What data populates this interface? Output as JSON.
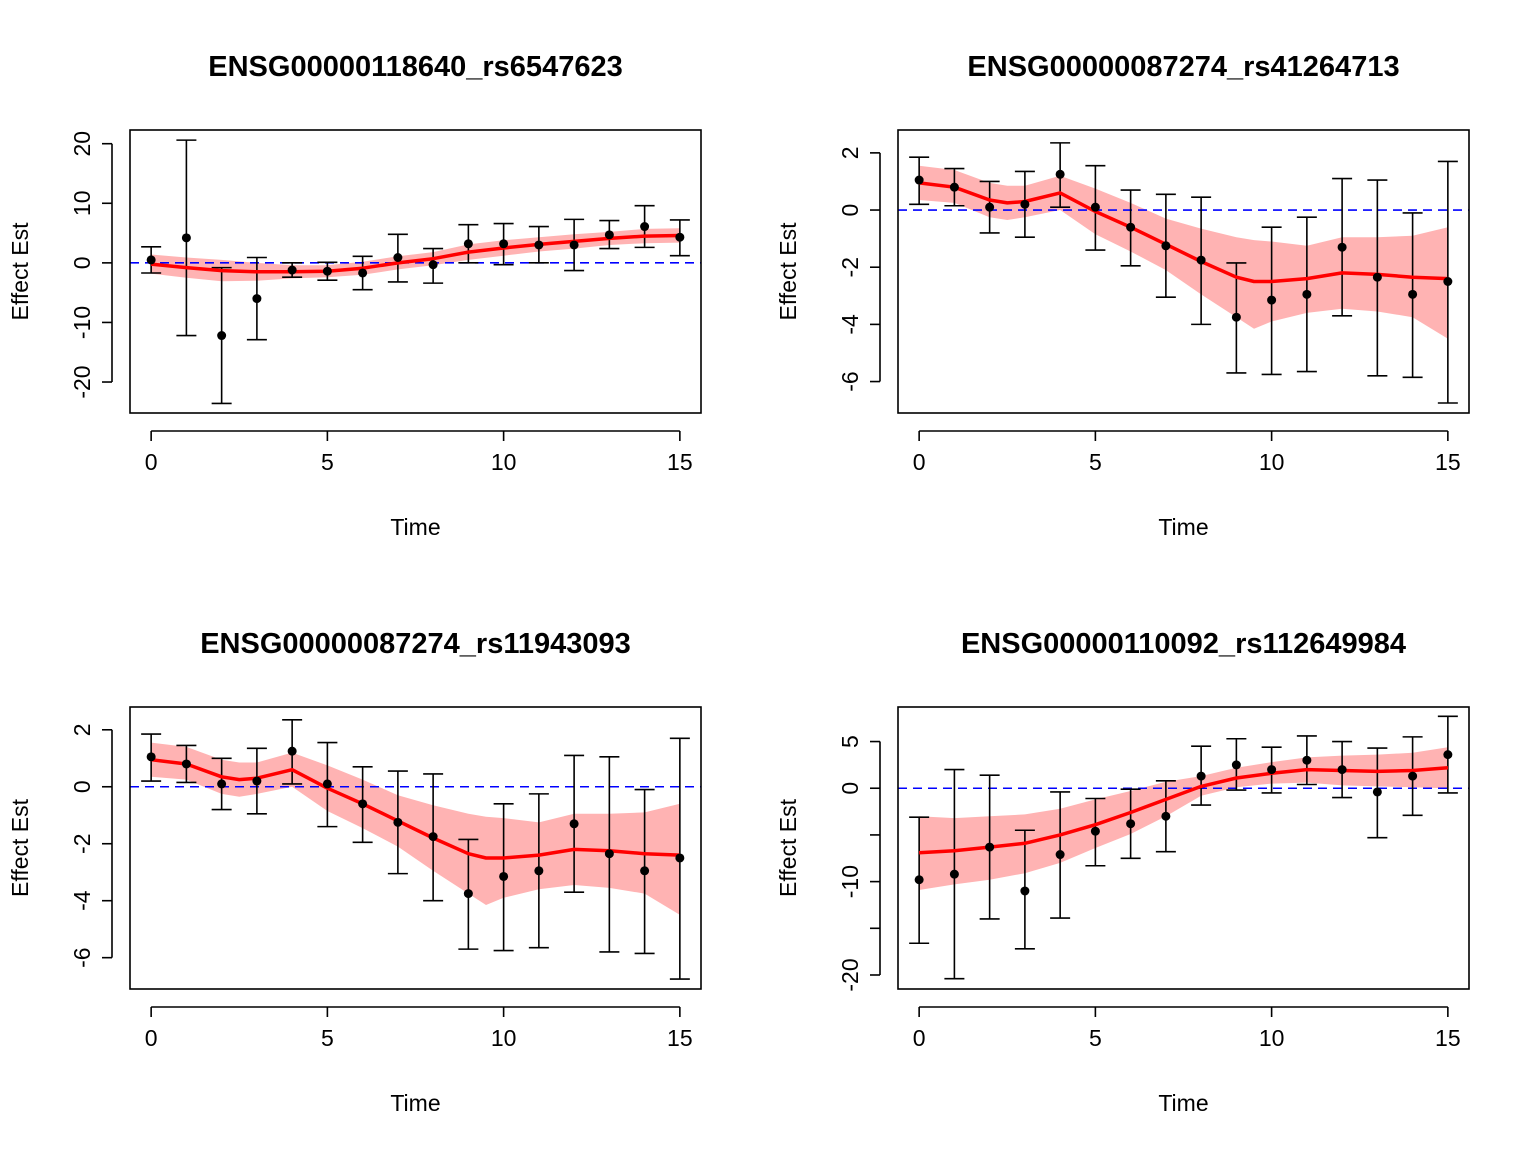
{
  "colors": {
    "band": "#ffb3b3",
    "smooth": "#ff0000",
    "refline": "#0000ff",
    "point": "#000000"
  },
  "chart_data": [
    {
      "type": "scatter",
      "title": "ENSG00000118640_rs6547623",
      "xlabel": "Time",
      "ylabel": "Effect Est",
      "xlim": [
        -0.6,
        15.6
      ],
      "ylim": [
        -25.2,
        22.3
      ],
      "xticks": [
        0,
        5,
        10,
        15
      ],
      "yticks": [
        -20,
        -10,
        0,
        10,
        20
      ],
      "reference_line": 0,
      "points": [
        {
          "x": 0,
          "y": 0.5,
          "lo": -1.7,
          "hi": 2.7
        },
        {
          "x": 1,
          "y": 4.2,
          "lo": -12.2,
          "hi": 20.6
        },
        {
          "x": 2,
          "y": -12.2,
          "lo": -23.6,
          "hi": -0.8
        },
        {
          "x": 3,
          "y": -6.0,
          "lo": -12.9,
          "hi": 0.9
        },
        {
          "x": 4,
          "y": -1.2,
          "lo": -2.4,
          "hi": 0.0
        },
        {
          "x": 5,
          "y": -1.4,
          "lo": -2.9,
          "hi": 0.1
        },
        {
          "x": 6,
          "y": -1.7,
          "lo": -4.5,
          "hi": 1.1
        },
        {
          "x": 7,
          "y": 0.9,
          "lo": -3.2,
          "hi": 4.8
        },
        {
          "x": 8,
          "y": -0.3,
          "lo": -3.4,
          "hi": 2.4
        },
        {
          "x": 9,
          "y": 3.2,
          "lo": 0.0,
          "hi": 6.4
        },
        {
          "x": 10,
          "y": 3.2,
          "lo": -0.3,
          "hi": 6.6
        },
        {
          "x": 11,
          "y": 3.0,
          "lo": 0.0,
          "hi": 6.1
        },
        {
          "x": 12,
          "y": 3.0,
          "lo": -1.3,
          "hi": 7.3
        },
        {
          "x": 13,
          "y": 4.7,
          "lo": 2.4,
          "hi": 7.1
        },
        {
          "x": 14,
          "y": 6.1,
          "lo": 2.6,
          "hi": 9.6
        },
        {
          "x": 15,
          "y": 4.3,
          "lo": 1.2,
          "hi": 7.2
        }
      ],
      "smooth": {
        "x": [
          0,
          1,
          2,
          3,
          4,
          5,
          6,
          7,
          8,
          9,
          10,
          11,
          12,
          13,
          14,
          15
        ],
        "y": [
          -0.2,
          -0.8,
          -1.3,
          -1.5,
          -1.5,
          -1.4,
          -0.9,
          0.0,
          0.7,
          1.8,
          2.5,
          3.1,
          3.6,
          4.1,
          4.5,
          4.6
        ],
        "lo": [
          -1.8,
          -2.5,
          -3.1,
          -3.0,
          -2.6,
          -2.4,
          -2.0,
          -1.1,
          -0.4,
          0.5,
          1.2,
          1.9,
          2.4,
          3.0,
          3.3,
          3.4
        ],
        "hi": [
          1.4,
          0.9,
          0.5,
          0.0,
          -0.4,
          -0.4,
          0.2,
          1.1,
          1.8,
          3.1,
          3.8,
          4.3,
          4.8,
          5.2,
          5.7,
          5.8
        ]
      }
    },
    {
      "type": "scatter",
      "title": "ENSG00000087274_rs41264713",
      "xlabel": "Time",
      "ylabel": "Effect Est",
      "xlim": [
        -0.6,
        15.6
      ],
      "ylim": [
        -7.1,
        2.8
      ],
      "xticks": [
        0,
        5,
        10,
        15
      ],
      "yticks": [
        -6,
        -4,
        -2,
        0,
        2
      ],
      "reference_line": 0,
      "points": [
        {
          "x": 0,
          "y": 1.05,
          "lo": 0.2,
          "hi": 1.85
        },
        {
          "x": 1,
          "y": 0.8,
          "lo": 0.15,
          "hi": 1.45
        },
        {
          "x": 2,
          "y": 0.1,
          "lo": -0.8,
          "hi": 1.0
        },
        {
          "x": 3,
          "y": 0.2,
          "lo": -0.95,
          "hi": 1.35
        },
        {
          "x": 4,
          "y": 1.25,
          "lo": 0.1,
          "hi": 2.35
        },
        {
          "x": 5,
          "y": 0.1,
          "lo": -1.4,
          "hi": 1.55
        },
        {
          "x": 6,
          "y": -0.6,
          "lo": -1.95,
          "hi": 0.7
        },
        {
          "x": 7,
          "y": -1.25,
          "lo": -3.05,
          "hi": 0.55
        },
        {
          "x": 8,
          "y": -1.75,
          "lo": -4.0,
          "hi": 0.45
        },
        {
          "x": 9,
          "y": -3.75,
          "lo": -5.7,
          "hi": -1.85
        },
        {
          "x": 10,
          "y": -3.15,
          "lo": -5.75,
          "hi": -0.6
        },
        {
          "x": 11,
          "y": -2.95,
          "lo": -5.65,
          "hi": -0.25
        },
        {
          "x": 12,
          "y": -1.3,
          "lo": -3.7,
          "hi": 1.1
        },
        {
          "x": 13,
          "y": -2.35,
          "lo": -5.8,
          "hi": 1.05
        },
        {
          "x": 14,
          "y": -2.95,
          "lo": -5.85,
          "hi": -0.1
        },
        {
          "x": 15,
          "y": -2.5,
          "lo": -6.75,
          "hi": 1.7
        }
      ],
      "smooth": {
        "x": [
          0,
          1,
          2,
          2.5,
          3,
          4,
          5,
          6,
          7,
          8,
          9,
          9.5,
          10,
          11,
          12,
          13,
          14,
          15
        ],
        "y": [
          0.95,
          0.8,
          0.35,
          0.25,
          0.3,
          0.6,
          -0.05,
          -0.6,
          -1.2,
          -1.8,
          -2.35,
          -2.5,
          -2.5,
          -2.4,
          -2.2,
          -2.25,
          -2.35,
          -2.4
        ],
        "lo": [
          0.35,
          0.25,
          -0.25,
          -0.35,
          -0.25,
          0.0,
          -0.85,
          -1.45,
          -2.1,
          -2.95,
          -3.75,
          -4.15,
          -3.9,
          -3.6,
          -3.45,
          -3.55,
          -3.75,
          -4.5
        ],
        "hi": [
          1.55,
          1.4,
          0.95,
          0.85,
          0.85,
          1.2,
          0.75,
          0.25,
          -0.3,
          -0.65,
          -0.95,
          -1.05,
          -1.1,
          -1.25,
          -0.95,
          -0.95,
          -0.9,
          -0.6
        ]
      }
    },
    {
      "type": "scatter",
      "title": "ENSG00000087274_rs11943093",
      "xlabel": "Time",
      "ylabel": "Effect Est",
      "xlim": [
        -0.6,
        15.6
      ],
      "ylim": [
        -7.1,
        2.8
      ],
      "xticks": [
        0,
        5,
        10,
        15
      ],
      "yticks": [
        -6,
        -4,
        -2,
        0,
        2
      ],
      "reference_line": 0,
      "points": [
        {
          "x": 0,
          "y": 1.05,
          "lo": 0.2,
          "hi": 1.85
        },
        {
          "x": 1,
          "y": 0.8,
          "lo": 0.15,
          "hi": 1.45
        },
        {
          "x": 2,
          "y": 0.1,
          "lo": -0.8,
          "hi": 1.0
        },
        {
          "x": 3,
          "y": 0.2,
          "lo": -0.95,
          "hi": 1.35
        },
        {
          "x": 4,
          "y": 1.25,
          "lo": 0.1,
          "hi": 2.35
        },
        {
          "x": 5,
          "y": 0.1,
          "lo": -1.4,
          "hi": 1.55
        },
        {
          "x": 6,
          "y": -0.6,
          "lo": -1.95,
          "hi": 0.7
        },
        {
          "x": 7,
          "y": -1.25,
          "lo": -3.05,
          "hi": 0.55
        },
        {
          "x": 8,
          "y": -1.75,
          "lo": -4.0,
          "hi": 0.45
        },
        {
          "x": 9,
          "y": -3.75,
          "lo": -5.7,
          "hi": -1.85
        },
        {
          "x": 10,
          "y": -3.15,
          "lo": -5.75,
          "hi": -0.6
        },
        {
          "x": 11,
          "y": -2.95,
          "lo": -5.65,
          "hi": -0.25
        },
        {
          "x": 12,
          "y": -1.3,
          "lo": -3.7,
          "hi": 1.1
        },
        {
          "x": 13,
          "y": -2.35,
          "lo": -5.8,
          "hi": 1.05
        },
        {
          "x": 14,
          "y": -2.95,
          "lo": -5.85,
          "hi": -0.1
        },
        {
          "x": 15,
          "y": -2.5,
          "lo": -6.75,
          "hi": 1.7
        }
      ],
      "smooth": {
        "x": [
          0,
          1,
          2,
          2.5,
          3,
          4,
          5,
          6,
          7,
          8,
          9,
          9.5,
          10,
          11,
          12,
          13,
          14,
          15
        ],
        "y": [
          0.95,
          0.8,
          0.35,
          0.25,
          0.3,
          0.6,
          -0.05,
          -0.6,
          -1.2,
          -1.8,
          -2.35,
          -2.5,
          -2.5,
          -2.4,
          -2.2,
          -2.25,
          -2.35,
          -2.4
        ],
        "lo": [
          0.35,
          0.25,
          -0.25,
          -0.35,
          -0.25,
          0.0,
          -0.85,
          -1.45,
          -2.1,
          -2.95,
          -3.75,
          -4.15,
          -3.9,
          -3.6,
          -3.45,
          -3.55,
          -3.75,
          -4.5
        ],
        "hi": [
          1.55,
          1.4,
          0.95,
          0.85,
          0.85,
          1.2,
          0.75,
          0.25,
          -0.3,
          -0.65,
          -0.95,
          -1.05,
          -1.1,
          -1.25,
          -0.95,
          -0.95,
          -0.9,
          -0.6
        ]
      }
    },
    {
      "type": "scatter",
      "title": "ENSG00000110092_rs112649984",
      "xlabel": "Time",
      "ylabel": "Effect Est",
      "xlim": [
        -0.6,
        15.6
      ],
      "ylim": [
        -21.5,
        8.7
      ],
      "xticks": [
        0,
        5,
        10,
        15
      ],
      "yticks": [
        -20,
        -10,
        0,
        5
      ],
      "ytick_labels": [
        "-20",
        "-10",
        "0",
        "5"
      ],
      "minor_yticks": [
        -15,
        -5
      ],
      "reference_line": 0,
      "points": [
        {
          "x": 0,
          "y": -9.8,
          "lo": -16.6,
          "hi": -3.1
        },
        {
          "x": 1,
          "y": -9.2,
          "lo": -20.4,
          "hi": 2.0
        },
        {
          "x": 2,
          "y": -6.3,
          "lo": -14.0,
          "hi": 1.4
        },
        {
          "x": 3,
          "y": -11.0,
          "lo": -17.2,
          "hi": -4.5
        },
        {
          "x": 4,
          "y": -7.1,
          "lo": -13.9,
          "hi": -0.4
        },
        {
          "x": 5,
          "y": -4.6,
          "lo": -8.3,
          "hi": -1.1
        },
        {
          "x": 6,
          "y": -3.8,
          "lo": -7.5,
          "hi": -0.1
        },
        {
          "x": 7,
          "y": -3.0,
          "lo": -6.8,
          "hi": 0.8
        },
        {
          "x": 8,
          "y": 1.3,
          "lo": -1.8,
          "hi": 4.5
        },
        {
          "x": 9,
          "y": 2.5,
          "lo": -0.2,
          "hi": 5.3
        },
        {
          "x": 10,
          "y": 2.0,
          "lo": -0.5,
          "hi": 4.4
        },
        {
          "x": 11,
          "y": 3.0,
          "lo": 0.4,
          "hi": 5.6
        },
        {
          "x": 12,
          "y": 2.0,
          "lo": -1.0,
          "hi": 5.0
        },
        {
          "x": 13,
          "y": -0.4,
          "lo": -5.3,
          "hi": 4.3
        },
        {
          "x": 14,
          "y": 1.3,
          "lo": -2.9,
          "hi": 5.5
        },
        {
          "x": 15,
          "y": 3.6,
          "lo": -0.5,
          "hi": 7.7
        }
      ],
      "smooth": {
        "x": [
          0,
          1,
          2,
          3,
          4,
          5,
          6,
          7,
          8,
          9,
          10,
          11,
          12,
          13,
          14,
          15
        ],
        "y": [
          -6.9,
          -6.7,
          -6.3,
          -5.9,
          -5.0,
          -3.9,
          -2.6,
          -1.2,
          0.2,
          1.1,
          1.6,
          2.0,
          1.9,
          1.8,
          1.9,
          2.2
        ],
        "lo": [
          -10.9,
          -10.3,
          -9.8,
          -9.1,
          -8.0,
          -6.4,
          -4.9,
          -3.0,
          -0.8,
          0.1,
          0.5,
          0.6,
          0.3,
          0.2,
          0.1,
          0.0
        ],
        "hi": [
          -3.0,
          -3.2,
          -3.0,
          -2.8,
          -2.2,
          -1.2,
          -0.3,
          0.7,
          1.3,
          2.2,
          2.8,
          3.3,
          3.5,
          3.6,
          3.8,
          4.4
        ]
      }
    }
  ]
}
